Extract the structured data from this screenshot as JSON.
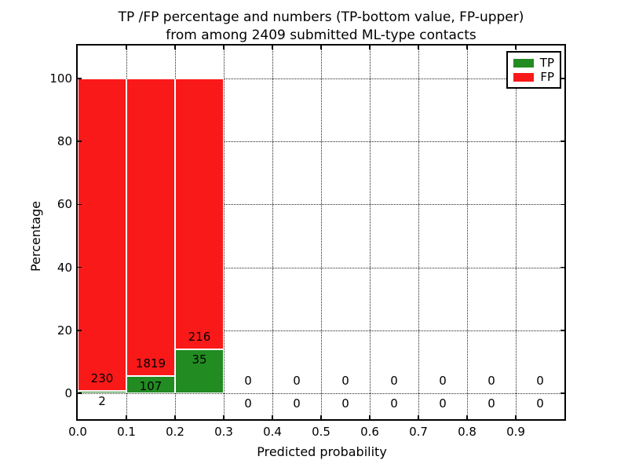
{
  "figure": {
    "title_line1": "TP /FP percentage and numbers (TP-bottom value, FP-upper)",
    "title_line2": "from among 2409 submitted ML-type contacts",
    "xlabel": "Predicted probability",
    "ylabel": "Percentage"
  },
  "legend": {
    "items": [
      {
        "label": "TP",
        "color": "#228b22"
      },
      {
        "label": "FP",
        "color": "#fa1919"
      }
    ]
  },
  "chart_data": {
    "type": "bar",
    "stacked": true,
    "title": "TP /FP percentage and numbers (TP-bottom value, FP-upper) from among 2409 submitted ML-type contacts",
    "xlabel": "Predicted probability",
    "ylabel": "Percentage",
    "total_contacts": 2409,
    "bin_starts": [
      0.0,
      0.1,
      0.2,
      0.3,
      0.4,
      0.5,
      0.6,
      0.7,
      0.8,
      0.9
    ],
    "bin_width": 0.1,
    "xticks": [
      "0.0",
      "0.1",
      "0.2",
      "0.3",
      "0.4",
      "0.5",
      "0.6",
      "0.7",
      "0.8",
      "0.9"
    ],
    "yticks": [
      0,
      20,
      40,
      60,
      80,
      100
    ],
    "xlim": [
      0.0,
      1.0
    ],
    "ylim": [
      -8.2,
      110.5
    ],
    "grid": true,
    "grid_linestyle": "dotted",
    "legend_position": "upper right",
    "series": [
      {
        "name": "TP",
        "color": "#228b22",
        "counts": [
          2,
          107,
          35,
          0,
          0,
          0,
          0,
          0,
          0,
          0
        ],
        "percent": [
          0.86,
          5.56,
          13.94,
          0,
          0,
          0,
          0,
          0,
          0,
          0
        ]
      },
      {
        "name": "FP",
        "color": "#fa1919",
        "counts": [
          230,
          1819,
          216,
          0,
          0,
          0,
          0,
          0,
          0,
          0
        ],
        "percent": [
          99.14,
          94.44,
          86.06,
          0,
          0,
          0,
          0,
          0,
          0,
          0
        ]
      }
    ]
  }
}
